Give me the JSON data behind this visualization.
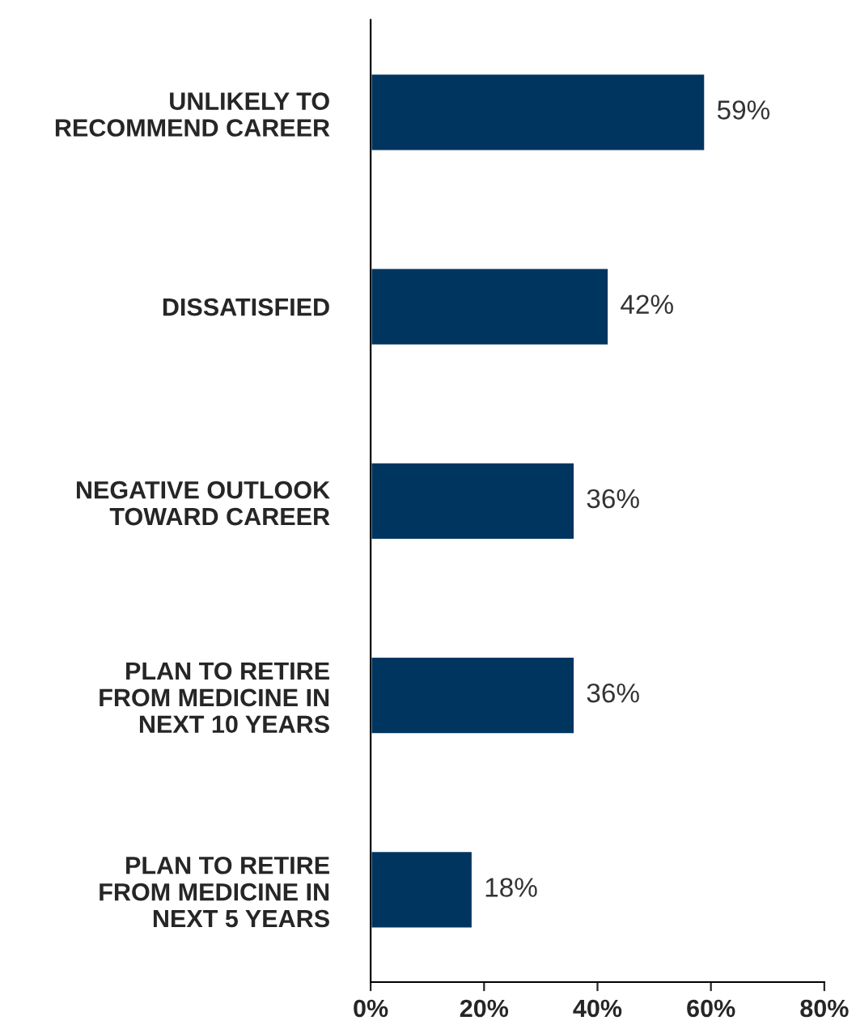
{
  "chart_data": {
    "type": "bar",
    "orientation": "horizontal",
    "categories": [
      "UNLIKELY TO\nRECOMMEND CAREER",
      "DISSATISFIED",
      "NEGATIVE OUTLOOK\nTOWARD CAREER",
      "PLAN TO RETIRE\nFROM MEDICINE IN\nNEXT 10 YEARS",
      "PLAN TO RETIRE\nFROM MEDICINE IN\nNEXT 5 YEARS"
    ],
    "values": [
      59,
      42,
      36,
      36,
      18
    ],
    "value_labels": [
      "59%",
      "42%",
      "36%",
      "36%",
      "18%"
    ],
    "color": "#003560",
    "xlim": [
      0,
      80
    ],
    "xticks": [
      {
        "value": 0,
        "label": "0%"
      },
      {
        "value": 20,
        "label": "20%"
      },
      {
        "value": 40,
        "label": "40%"
      },
      {
        "value": 60,
        "label": "60%"
      },
      {
        "value": 80,
        "label": "80%"
      }
    ],
    "grid": false,
    "legend": false
  }
}
